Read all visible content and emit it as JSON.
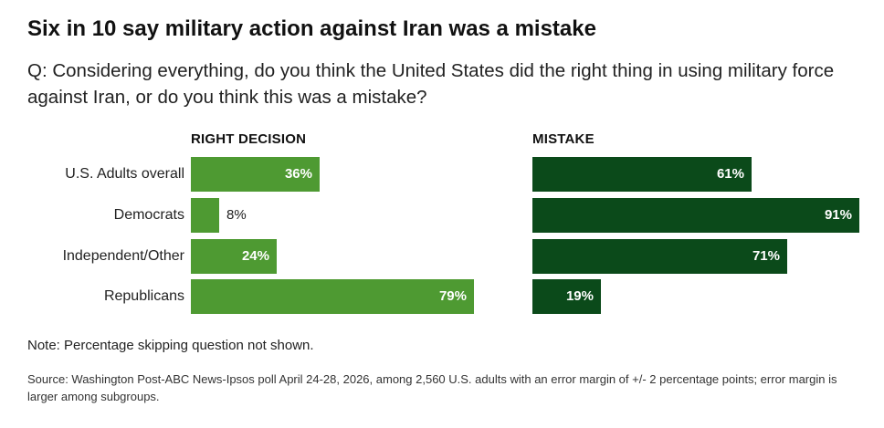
{
  "title": "Six in 10 say military action against Iran was a mistake",
  "question": "Q: Considering everything, do you think the United States did the right thing in using military force against Iran, or do you think this was a mistake?",
  "note": "Note: Percentage skipping question not shown.",
  "source": "Source: Washington Post-ABC News-Ipsos poll April 24-28, 2026, among 2,560 U.S. adults with an error margin of +/- 2 percentage points; error margin is larger among subgroups.",
  "colors": {
    "right_decision": "#4e9a32",
    "mistake": "#0b4a1a"
  },
  "chart_data": {
    "type": "bar",
    "orientation": "horizontal",
    "categories": [
      "U.S. Adults overall",
      "Democrats",
      "Independent/Other",
      "Republicans"
    ],
    "series": [
      {
        "name": "RIGHT DECISION",
        "values": [
          36,
          8,
          24,
          79
        ],
        "labels": [
          "36%",
          "8%",
          "24%",
          "79%"
        ]
      },
      {
        "name": "MISTAKE",
        "values": [
          61,
          91,
          71,
          19
        ],
        "labels": [
          "61%",
          "91%",
          "71%",
          "19%"
        ]
      }
    ],
    "unit": "%",
    "xlim": [
      0,
      100
    ]
  }
}
